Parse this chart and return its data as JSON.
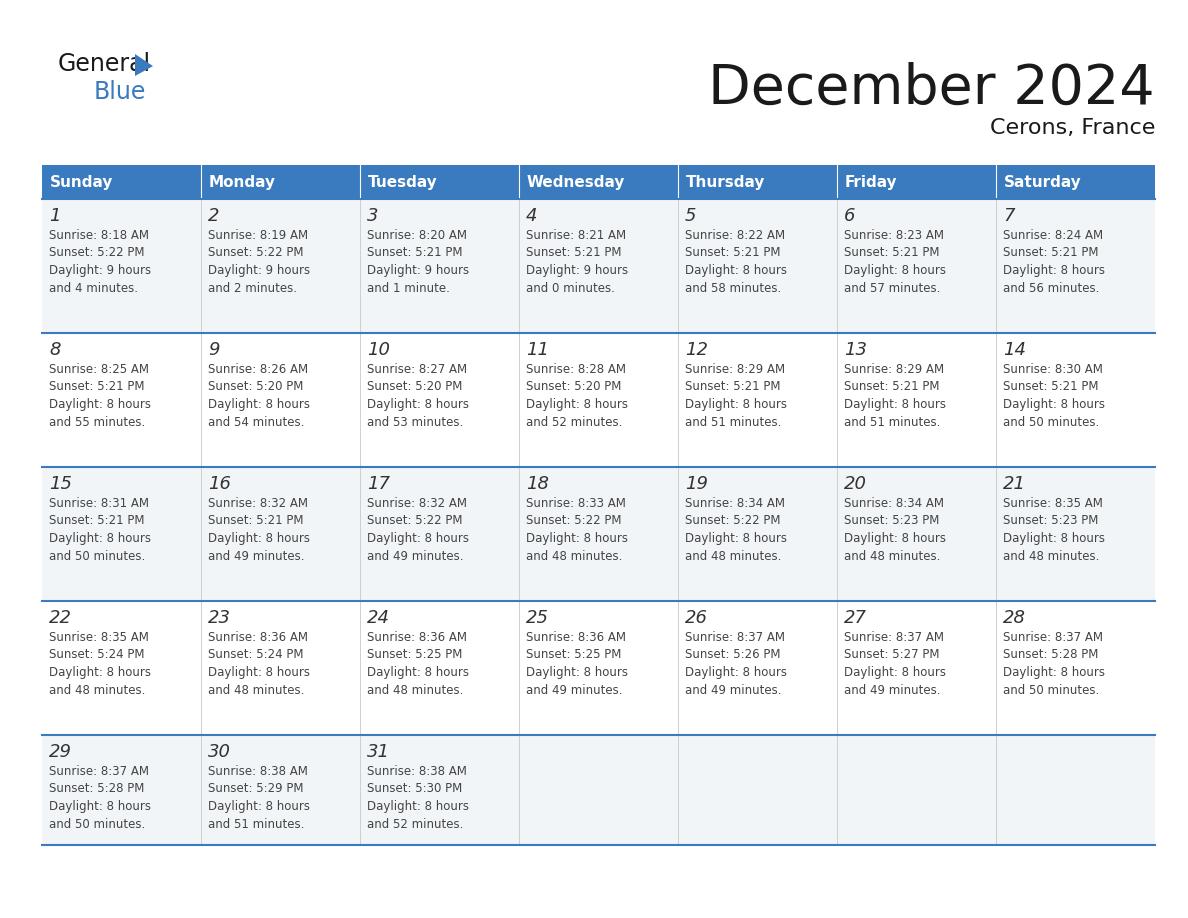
{
  "title": "December 2024",
  "subtitle": "Cerons, France",
  "header_color": "#3a7abf",
  "header_text_color": "#ffffff",
  "day_names": [
    "Sunday",
    "Monday",
    "Tuesday",
    "Wednesday",
    "Thursday",
    "Friday",
    "Saturday"
  ],
  "row_bg_odd": "#f2f5f8",
  "row_bg_even": "#ffffff",
  "grid_line_color": "#3a7abf",
  "text_color": "#444444",
  "day_num_color": "#333333",
  "weeks": [
    [
      {
        "day": 1,
        "sunrise": "8:18 AM",
        "sunset": "5:22 PM",
        "daylight": "9 hours\nand 4 minutes."
      },
      {
        "day": 2,
        "sunrise": "8:19 AM",
        "sunset": "5:22 PM",
        "daylight": "9 hours\nand 2 minutes."
      },
      {
        "day": 3,
        "sunrise": "8:20 AM",
        "sunset": "5:21 PM",
        "daylight": "9 hours\nand 1 minute."
      },
      {
        "day": 4,
        "sunrise": "8:21 AM",
        "sunset": "5:21 PM",
        "daylight": "9 hours\nand 0 minutes."
      },
      {
        "day": 5,
        "sunrise": "8:22 AM",
        "sunset": "5:21 PM",
        "daylight": "8 hours\nand 58 minutes."
      },
      {
        "day": 6,
        "sunrise": "8:23 AM",
        "sunset": "5:21 PM",
        "daylight": "8 hours\nand 57 minutes."
      },
      {
        "day": 7,
        "sunrise": "8:24 AM",
        "sunset": "5:21 PM",
        "daylight": "8 hours\nand 56 minutes."
      }
    ],
    [
      {
        "day": 8,
        "sunrise": "8:25 AM",
        "sunset": "5:21 PM",
        "daylight": "8 hours\nand 55 minutes."
      },
      {
        "day": 9,
        "sunrise": "8:26 AM",
        "sunset": "5:20 PM",
        "daylight": "8 hours\nand 54 minutes."
      },
      {
        "day": 10,
        "sunrise": "8:27 AM",
        "sunset": "5:20 PM",
        "daylight": "8 hours\nand 53 minutes."
      },
      {
        "day": 11,
        "sunrise": "8:28 AM",
        "sunset": "5:20 PM",
        "daylight": "8 hours\nand 52 minutes."
      },
      {
        "day": 12,
        "sunrise": "8:29 AM",
        "sunset": "5:21 PM",
        "daylight": "8 hours\nand 51 minutes."
      },
      {
        "day": 13,
        "sunrise": "8:29 AM",
        "sunset": "5:21 PM",
        "daylight": "8 hours\nand 51 minutes."
      },
      {
        "day": 14,
        "sunrise": "8:30 AM",
        "sunset": "5:21 PM",
        "daylight": "8 hours\nand 50 minutes."
      }
    ],
    [
      {
        "day": 15,
        "sunrise": "8:31 AM",
        "sunset": "5:21 PM",
        "daylight": "8 hours\nand 50 minutes."
      },
      {
        "day": 16,
        "sunrise": "8:32 AM",
        "sunset": "5:21 PM",
        "daylight": "8 hours\nand 49 minutes."
      },
      {
        "day": 17,
        "sunrise": "8:32 AM",
        "sunset": "5:22 PM",
        "daylight": "8 hours\nand 49 minutes."
      },
      {
        "day": 18,
        "sunrise": "8:33 AM",
        "sunset": "5:22 PM",
        "daylight": "8 hours\nand 48 minutes."
      },
      {
        "day": 19,
        "sunrise": "8:34 AM",
        "sunset": "5:22 PM",
        "daylight": "8 hours\nand 48 minutes."
      },
      {
        "day": 20,
        "sunrise": "8:34 AM",
        "sunset": "5:23 PM",
        "daylight": "8 hours\nand 48 minutes."
      },
      {
        "day": 21,
        "sunrise": "8:35 AM",
        "sunset": "5:23 PM",
        "daylight": "8 hours\nand 48 minutes."
      }
    ],
    [
      {
        "day": 22,
        "sunrise": "8:35 AM",
        "sunset": "5:24 PM",
        "daylight": "8 hours\nand 48 minutes."
      },
      {
        "day": 23,
        "sunrise": "8:36 AM",
        "sunset": "5:24 PM",
        "daylight": "8 hours\nand 48 minutes."
      },
      {
        "day": 24,
        "sunrise": "8:36 AM",
        "sunset": "5:25 PM",
        "daylight": "8 hours\nand 48 minutes."
      },
      {
        "day": 25,
        "sunrise": "8:36 AM",
        "sunset": "5:25 PM",
        "daylight": "8 hours\nand 49 minutes."
      },
      {
        "day": 26,
        "sunrise": "8:37 AM",
        "sunset": "5:26 PM",
        "daylight": "8 hours\nand 49 minutes."
      },
      {
        "day": 27,
        "sunrise": "8:37 AM",
        "sunset": "5:27 PM",
        "daylight": "8 hours\nand 49 minutes."
      },
      {
        "day": 28,
        "sunrise": "8:37 AM",
        "sunset": "5:28 PM",
        "daylight": "8 hours\nand 50 minutes."
      }
    ],
    [
      {
        "day": 29,
        "sunrise": "8:37 AM",
        "sunset": "5:28 PM",
        "daylight": "8 hours\nand 50 minutes."
      },
      {
        "day": 30,
        "sunrise": "8:38 AM",
        "sunset": "5:29 PM",
        "daylight": "8 hours\nand 51 minutes."
      },
      {
        "day": 31,
        "sunrise": "8:38 AM",
        "sunset": "5:30 PM",
        "daylight": "8 hours\nand 52 minutes."
      },
      null,
      null,
      null,
      null
    ]
  ]
}
